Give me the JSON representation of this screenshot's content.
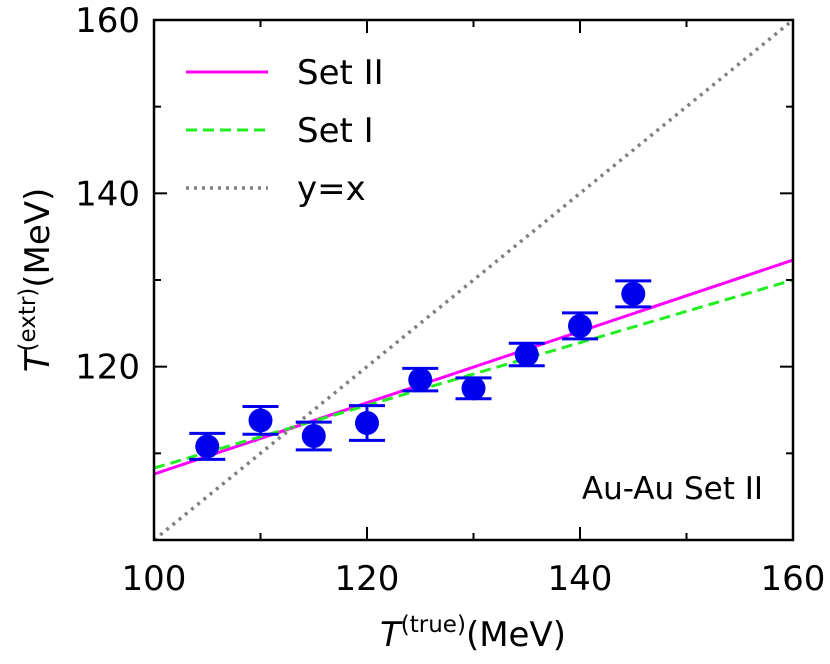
{
  "chart_data": {
    "type": "scatter",
    "xlabel": {
      "symbol": "T",
      "sup": "(true)",
      "unit": "(MeV)"
    },
    "ylabel": {
      "symbol": "T",
      "sup": "(extr)",
      "unit": "(MeV)"
    },
    "xlim": [
      100,
      160
    ],
    "ylim": [
      100,
      160
    ],
    "xticks": [
      100,
      120,
      140,
      160
    ],
    "yticks": [
      120,
      140,
      160
    ],
    "xtick_labels": [
      "100",
      "120",
      "140",
      "160"
    ],
    "ytick_labels": [
      "120",
      "140",
      "160"
    ],
    "annotation": "Au-Au Set II",
    "points": {
      "x": [
        105,
        110,
        115,
        120,
        125,
        130,
        135,
        140,
        145
      ],
      "y": [
        110.8,
        113.8,
        112.0,
        113.5,
        118.5,
        117.5,
        121.4,
        124.7,
        128.4
      ],
      "err": [
        1.5,
        1.6,
        1.6,
        2.0,
        1.3,
        1.2,
        1.3,
        1.5,
        1.5
      ],
      "color": "#0000ee"
    },
    "series": [
      {
        "name": "Set II",
        "style": "solid",
        "color": "#ff00ff",
        "x": [
          100,
          160
        ],
        "y": [
          107.6,
          132.3
        ]
      },
      {
        "name": "Set I",
        "style": "dashed",
        "color": "#22ee22",
        "x": [
          100,
          160
        ],
        "y": [
          108.3,
          130.0
        ]
      },
      {
        "name": "y=x",
        "style": "dotted",
        "color": "#808080",
        "x": [
          100,
          160
        ],
        "y": [
          100,
          160
        ]
      }
    ]
  }
}
